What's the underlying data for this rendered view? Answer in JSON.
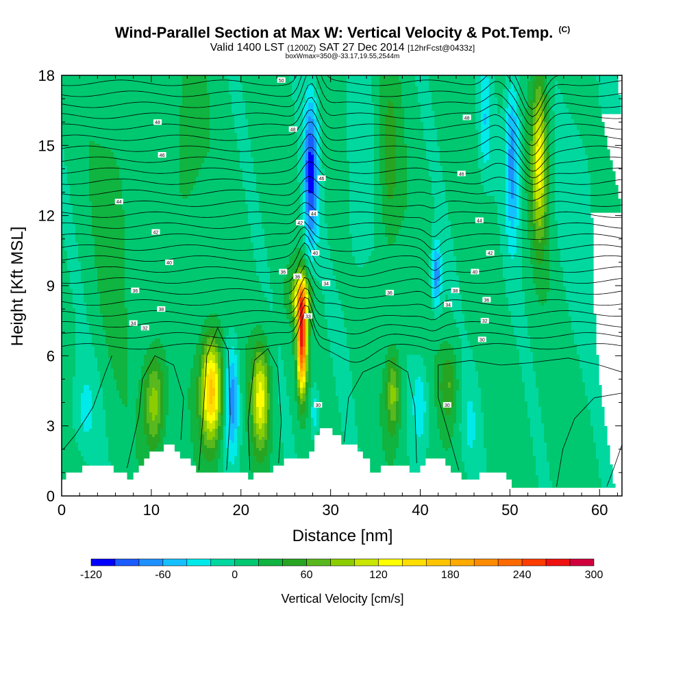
{
  "header": {
    "title": "Wind-Parallel Section at Max W: Vertical Velocity & Pot.Temp.",
    "copyright": "(C)",
    "valid_main": "Valid 1400 LST",
    "valid_utc": "(1200Z)",
    "valid_date": "SAT 27 Dec 2014",
    "valid_fcst": "[12hrFcst@0433z]",
    "subtitle": "boxWmax=350@-33.17,19.55,2544m"
  },
  "chart_data": {
    "type": "heatmap",
    "title": "Wind-Parallel Section at Max W: Vertical Velocity & Pot.Temp.",
    "xlabel": "Distance [nm]",
    "ylabel": "Height [Kft MSL]",
    "xlim": [
      0,
      62.5
    ],
    "ylim": [
      0,
      18
    ],
    "x_ticks": [
      0,
      10,
      20,
      30,
      40,
      50,
      60
    ],
    "y_ticks": [
      0,
      3,
      6,
      9,
      12,
      15,
      18
    ],
    "colorbar": {
      "label": "Vertical Velocity [cm/s]",
      "levels": [
        -120,
        -100,
        -80,
        -60,
        -40,
        -20,
        0,
        20,
        40,
        60,
        80,
        100,
        120,
        140,
        160,
        180,
        200,
        220,
        240,
        260,
        280,
        300
      ],
      "tick_labels": [
        "-120",
        "-60",
        "0",
        "60",
        "120",
        "180",
        "240",
        "300"
      ],
      "colors": [
        "#0000ff",
        "#1a5cff",
        "#1f90ff",
        "#14c0ff",
        "#00eaea",
        "#00d8a0",
        "#00c870",
        "#10b440",
        "#27a522",
        "#58b81e",
        "#8ccd00",
        "#c8e600",
        "#ffff00",
        "#ffde00",
        "#ffc400",
        "#ffaa00",
        "#ff8c00",
        "#ff6a00",
        "#ff3c00",
        "#ef1010",
        "#d0003c"
      ]
    },
    "w_features": [
      {
        "x": 10.3,
        "z": 4.0,
        "w": 90,
        "sx": 1.2,
        "sz": 2.2
      },
      {
        "x": 16.7,
        "z": 4.5,
        "w": 170,
        "sx": 1.2,
        "sz": 2.3
      },
      {
        "x": 19.0,
        "z": 4.2,
        "w": -80,
        "sx": 0.8,
        "sz": 2.4
      },
      {
        "x": 22.2,
        "z": 4.2,
        "w": 120,
        "sx": 1.0,
        "sz": 2.2
      },
      {
        "x": 26.8,
        "z": 6.7,
        "w": 250,
        "sx": 0.55,
        "sz": 2.2
      },
      {
        "x": 26.6,
        "z": 8.5,
        "w": 100,
        "sx": 1.2,
        "sz": 1.0
      },
      {
        "x": 28.2,
        "z": 3.6,
        "w": -50,
        "sx": 0.5,
        "sz": 1.2
      },
      {
        "x": 27.8,
        "z": 13.8,
        "w": -110,
        "sx": 0.8,
        "sz": 3.2
      },
      {
        "x": 41.8,
        "z": 9.4,
        "w": -80,
        "sx": 0.55,
        "sz": 1.4
      },
      {
        "x": 37.0,
        "z": 4.4,
        "w": 80,
        "sx": 0.8,
        "sz": 1.8
      },
      {
        "x": 40.0,
        "z": 4.0,
        "w": -40,
        "sx": 0.9,
        "sz": 1.8
      },
      {
        "x": 43.2,
        "z": 4.8,
        "w": 50,
        "sx": 1.0,
        "sz": 1.6
      },
      {
        "x": 50.3,
        "z": 14.5,
        "w": -80,
        "sx": 0.8,
        "sz": 3.6
      },
      {
        "x": 53.3,
        "z": 14.5,
        "w": 120,
        "sx": 0.9,
        "sz": 3.6
      },
      {
        "x": 47.2,
        "z": 16.0,
        "w": -40,
        "sx": 0.7,
        "sz": 2.5
      },
      {
        "x": 6.0,
        "z": 12.0,
        "w": 25,
        "sx": 2.0,
        "sz": 5.5
      },
      {
        "x": 14.0,
        "z": 15.0,
        "w": 30,
        "sx": 1.6,
        "sz": 4.0
      },
      {
        "x": 33.0,
        "z": 13.0,
        "w": -25,
        "sx": 1.6,
        "sz": 5.5
      },
      {
        "x": 36.5,
        "z": 14.0,
        "w": 40,
        "sx": 1.2,
        "sz": 4.0
      },
      {
        "x": 58.0,
        "z": 13.0,
        "w": -20,
        "sx": 2.5,
        "sz": 5.0
      },
      {
        "x": 2.5,
        "z": 3.5,
        "w": -30,
        "sx": 1.5,
        "sz": 2.0
      },
      {
        "x": 45.5,
        "z": 3.0,
        "w": -25,
        "sx": 1.0,
        "sz": 2.0
      }
    ],
    "terrain": [
      [
        0,
        0.7
      ],
      [
        0.5,
        0.7
      ],
      [
        0.5,
        1.0
      ],
      [
        2.3,
        1.0
      ],
      [
        2.3,
        1.3
      ],
      [
        5.8,
        1.3
      ],
      [
        5.8,
        1.0
      ],
      [
        7.3,
        1.0
      ],
      [
        7.3,
        0.7
      ],
      [
        8.0,
        0.7
      ],
      [
        8.0,
        1.0
      ],
      [
        8.6,
        1.0
      ],
      [
        8.6,
        1.3
      ],
      [
        9.2,
        1.3
      ],
      [
        9.2,
        1.6
      ],
      [
        9.8,
        1.6
      ],
      [
        9.8,
        1.9
      ],
      [
        11.4,
        1.9
      ],
      [
        11.4,
        2.2
      ],
      [
        12.6,
        2.2
      ],
      [
        12.6,
        1.9
      ],
      [
        13.2,
        1.9
      ],
      [
        13.2,
        1.6
      ],
      [
        14.4,
        1.6
      ],
      [
        14.4,
        1.3
      ],
      [
        15.0,
        1.3
      ],
      [
        15.0,
        1.0
      ],
      [
        20.8,
        1.0
      ],
      [
        20.8,
        0.7
      ],
      [
        21.4,
        0.7
      ],
      [
        21.4,
        1.0
      ],
      [
        23.6,
        1.0
      ],
      [
        23.6,
        1.3
      ],
      [
        24.8,
        1.3
      ],
      [
        24.8,
        1.6
      ],
      [
        27.6,
        1.6
      ],
      [
        27.6,
        1.9
      ],
      [
        28.2,
        1.9
      ],
      [
        28.2,
        2.6
      ],
      [
        28.8,
        2.6
      ],
      [
        28.8,
        2.9
      ],
      [
        30.2,
        2.9
      ],
      [
        30.2,
        2.6
      ],
      [
        31.2,
        2.6
      ],
      [
        31.2,
        2.2
      ],
      [
        33.0,
        2.2
      ],
      [
        33.0,
        1.9
      ],
      [
        33.6,
        1.9
      ],
      [
        33.6,
        1.6
      ],
      [
        34.4,
        1.6
      ],
      [
        34.4,
        1.0
      ],
      [
        35.6,
        1.0
      ],
      [
        35.6,
        1.3
      ],
      [
        38.8,
        1.3
      ],
      [
        38.8,
        1.0
      ],
      [
        40.0,
        1.0
      ],
      [
        40.0,
        1.3
      ],
      [
        40.6,
        1.3
      ],
      [
        40.6,
        1.6
      ],
      [
        42.8,
        1.6
      ],
      [
        42.8,
        1.3
      ],
      [
        43.4,
        1.3
      ],
      [
        43.4,
        1.0
      ],
      [
        44.6,
        1.0
      ],
      [
        44.6,
        0.7
      ],
      [
        46.6,
        0.7
      ],
      [
        46.6,
        1.0
      ],
      [
        49.6,
        1.0
      ],
      [
        49.6,
        0.7
      ],
      [
        50.2,
        0.7
      ],
      [
        50.2,
        0.35
      ],
      [
        62.5,
        0.35
      ]
    ],
    "theta_contours": [
      {
        "label": "30",
        "x": 46.9,
        "z": 6.7
      },
      {
        "label": "30",
        "x": 28.6,
        "z": 3.9
      },
      {
        "label": "30",
        "x": 43.0,
        "z": 3.9
      },
      {
        "label": "32",
        "x": 9.3,
        "z": 7.2
      },
      {
        "label": "32",
        "x": 47.2,
        "z": 7.5
      },
      {
        "label": "33",
        "x": 27.5,
        "z": 7.7
      },
      {
        "label": "34",
        "x": 8.0,
        "z": 7.4
      },
      {
        "label": "34",
        "x": 29.5,
        "z": 9.1
      },
      {
        "label": "34",
        "x": 43.1,
        "z": 8.2
      },
      {
        "label": "36",
        "x": 8.2,
        "z": 8.8
      },
      {
        "label": "36",
        "x": 24.7,
        "z": 9.6
      },
      {
        "label": "36",
        "x": 26.3,
        "z": 9.4
      },
      {
        "label": "36",
        "x": 36.6,
        "z": 8.7
      },
      {
        "label": "36",
        "x": 47.4,
        "z": 8.4
      },
      {
        "label": "38",
        "x": 11.1,
        "z": 8.0
      },
      {
        "label": "38",
        "x": 43.9,
        "z": 8.8
      },
      {
        "label": "40",
        "x": 12.0,
        "z": 10.0
      },
      {
        "label": "40",
        "x": 28.3,
        "z": 10.4
      },
      {
        "label": "40",
        "x": 46.1,
        "z": 9.6
      },
      {
        "label": "42",
        "x": 10.5,
        "z": 11.3
      },
      {
        "label": "42",
        "x": 26.6,
        "z": 11.7
      },
      {
        "label": "42",
        "x": 47.8,
        "z": 10.4
      },
      {
        "label": "44",
        "x": 6.4,
        "z": 12.6
      },
      {
        "label": "44",
        "x": 28.1,
        "z": 12.1
      },
      {
        "label": "44",
        "x": 46.6,
        "z": 11.8
      },
      {
        "label": "46",
        "x": 11.2,
        "z": 14.6
      },
      {
        "label": "46",
        "x": 29.0,
        "z": 13.6
      },
      {
        "label": "46",
        "x": 44.6,
        "z": 13.8
      },
      {
        "label": "48",
        "x": 10.7,
        "z": 16.0
      },
      {
        "label": "48",
        "x": 25.8,
        "z": 15.7
      },
      {
        "label": "48",
        "x": 45.2,
        "z": 16.2
      },
      {
        "label": "50",
        "x": 24.5,
        "z": 17.8
      }
    ]
  }
}
